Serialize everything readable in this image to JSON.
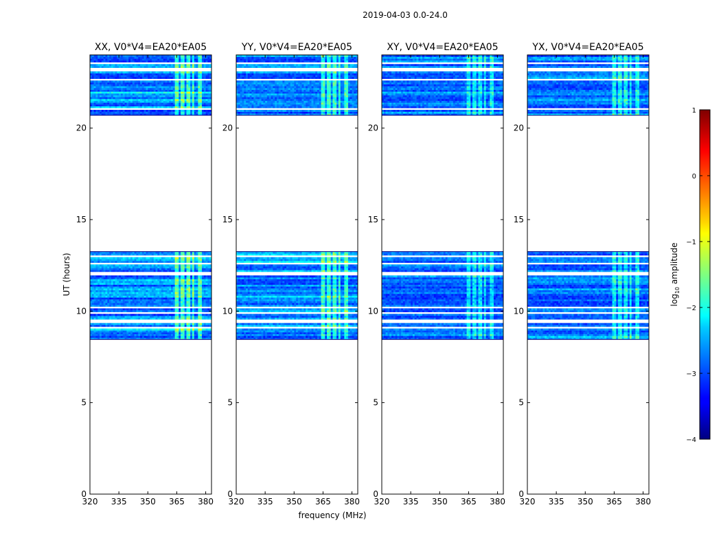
{
  "figure": {
    "suptitle": "2019-04-03 0.0-24.0",
    "xlabel": "frequency (MHz)",
    "ylabel": "UT (hours)"
  },
  "chart_data": {
    "type": "heatmap",
    "title": "2019-04-03 0.0-24.0",
    "xlabel": "frequency (MHz)",
    "ylabel": "UT (hours)",
    "xlim": [
      320,
      383
    ],
    "ylim": [
      0,
      24
    ],
    "x_ticks": [
      320,
      335,
      350,
      365,
      380
    ],
    "y_ticks": [
      0,
      5,
      10,
      15,
      20
    ],
    "panels": [
      {
        "title": "XX, V0*V4=EA20*EA05",
        "intensity": 1.1
      },
      {
        "title": "YY, V0*V4=EA20*EA05",
        "intensity": 1.0
      },
      {
        "title": "XY, V0*V4=EA20*EA05",
        "intensity": 0.7
      },
      {
        "title": "YX, V0*V4=EA20*EA05",
        "intensity": 0.8
      }
    ],
    "data_blocks_ut": [
      {
        "start": 8.45,
        "end": 13.25
      },
      {
        "start": 20.7,
        "end": 24.0
      }
    ],
    "flagged_gaps_ut": [
      [
        8.95,
        9.05
      ],
      [
        9.25,
        9.5
      ],
      [
        9.75,
        9.85
      ],
      [
        10.05,
        10.15
      ],
      [
        11.85,
        12.05
      ],
      [
        12.45,
        12.55
      ],
      [
        12.9,
        13.0
      ],
      [
        20.95,
        21.02
      ],
      [
        22.55,
        22.65
      ],
      [
        23.05,
        23.3
      ],
      [
        23.5,
        23.6
      ]
    ],
    "rfi_channels_mhz": [
      [
        364,
        366
      ],
      [
        367,
        368.5
      ],
      [
        370,
        371.5
      ],
      [
        373,
        374
      ],
      [
        375.5,
        377.5
      ]
    ],
    "colorbar": {
      "label": "log10 amplitude",
      "label_main": "log",
      "label_sub": "10",
      "label_rest": " amplitude",
      "range": [
        -4,
        1
      ],
      "ticks": [
        "1",
        "0",
        "−1",
        "−2",
        "−3",
        "−4"
      ],
      "colormap": "jet"
    }
  }
}
